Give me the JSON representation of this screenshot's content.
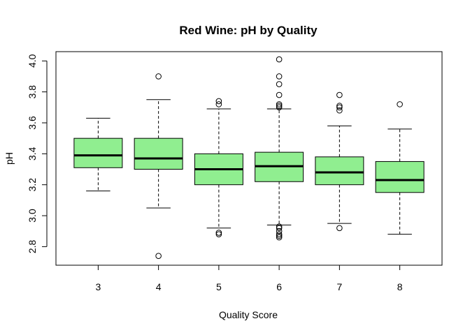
{
  "chart_data": {
    "type": "boxplot",
    "title": "Red Wine: pH by Quality",
    "xlabel": "Quality Score",
    "ylabel": "pH",
    "categories": [
      "3",
      "4",
      "5",
      "6",
      "7",
      "8"
    ],
    "ylim": [
      2.68,
      4.06
    ],
    "yticks": [
      2.8,
      3.0,
      3.2,
      3.4,
      3.6,
      3.8,
      4.0
    ],
    "ytick_labels": [
      "2.8",
      "3.0",
      "3.2",
      "3.4",
      "3.6",
      "3.8",
      "4.0"
    ],
    "box_color": "#90EE90",
    "grid": false,
    "boxes": [
      {
        "label": "3",
        "whisker_low": 3.16,
        "q1": 3.31,
        "median": 3.39,
        "q3": 3.5,
        "whisker_high": 3.63,
        "outliers": []
      },
      {
        "label": "4",
        "whisker_low": 3.05,
        "q1": 3.3,
        "median": 3.37,
        "q3": 3.5,
        "whisker_high": 3.75,
        "outliers": [
          3.9,
          2.74
        ]
      },
      {
        "label": "5",
        "whisker_low": 2.92,
        "q1": 3.2,
        "median": 3.3,
        "q3": 3.4,
        "whisker_high": 3.69,
        "outliers": [
          3.74,
          3.72,
          2.89,
          2.88
        ]
      },
      {
        "label": "6",
        "whisker_low": 2.94,
        "q1": 3.22,
        "median": 3.32,
        "q3": 3.41,
        "whisker_high": 3.69,
        "outliers": [
          4.01,
          3.9,
          3.85,
          3.78,
          3.72,
          3.71,
          3.7,
          2.93,
          2.92,
          2.9,
          2.88,
          2.87,
          2.86
        ]
      },
      {
        "label": "7",
        "whisker_low": 2.95,
        "q1": 3.2,
        "median": 3.28,
        "q3": 3.38,
        "whisker_high": 3.58,
        "outliers": [
          3.78,
          3.71,
          3.7,
          3.68,
          2.92
        ]
      },
      {
        "label": "8",
        "whisker_low": 2.88,
        "q1": 3.15,
        "median": 3.23,
        "q3": 3.35,
        "whisker_high": 3.56,
        "outliers": [
          3.72
        ]
      }
    ]
  }
}
